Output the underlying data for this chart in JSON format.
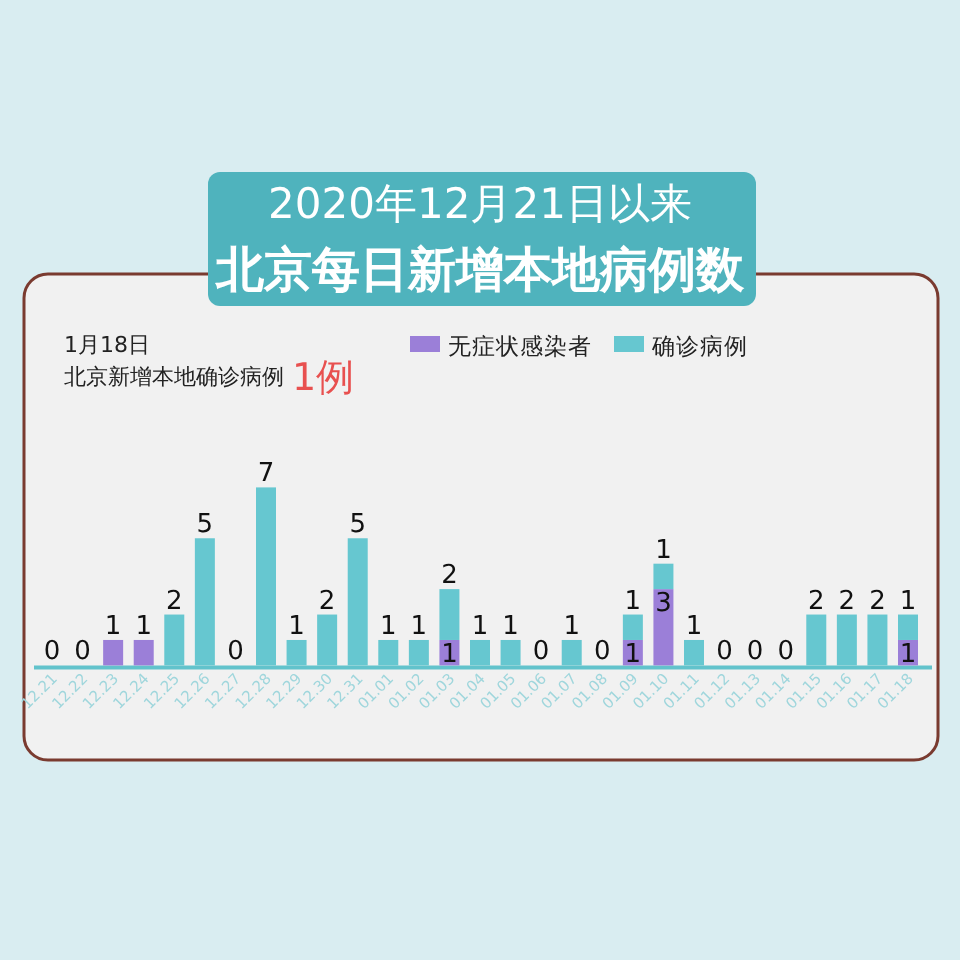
{
  "chart_data": {
    "type": "bar",
    "stacked": true,
    "title": "2020年12月21日以来",
    "subtitle": "北京每日新增本地病例数",
    "annotations": [
      "1月18日",
      "北京新增本地确诊病例",
      "1例"
    ],
    "legend": "top",
    "categories": [
      "12.21",
      "12.22",
      "12.23",
      "12.24",
      "12.25",
      "12.26",
      "12.27",
      "12.28",
      "12.29",
      "12.30",
      "12.31",
      "01.01",
      "01.02",
      "01.03",
      "01.04",
      "01.05",
      "01.06",
      "01.07",
      "01.08",
      "01.09",
      "01.10",
      "01.11",
      "01.12",
      "01.13",
      "01.14",
      "01.15",
      "01.16",
      "01.17",
      "01.18"
    ],
    "series": [
      {
        "name": "无症状感染者",
        "color": "#9b7fd8",
        "values": [
          0,
          0,
          1,
          1,
          0,
          0,
          0,
          0,
          0,
          0,
          0,
          0,
          0,
          1,
          0,
          0,
          0,
          0,
          0,
          1,
          3,
          0,
          0,
          0,
          0,
          0,
          0,
          0,
          1
        ],
        "value_labels": [
          null,
          null,
          "1",
          "1",
          null,
          null,
          null,
          null,
          null,
          null,
          null,
          null,
          null,
          "1",
          null,
          null,
          null,
          null,
          null,
          "1",
          "3",
          null,
          null,
          null,
          null,
          null,
          null,
          null,
          "1"
        ]
      },
      {
        "name": "确诊病例",
        "color": "#66c7d0",
        "values": [
          0,
          0,
          0,
          0,
          2,
          5,
          0,
          7,
          1,
          2,
          5,
          1,
          1,
          2,
          1,
          1,
          0,
          1,
          0,
          1,
          1,
          1,
          0,
          0,
          0,
          2,
          2,
          2,
          1
        ],
        "value_labels": [
          "0",
          "0",
          null,
          null,
          "2",
          "5",
          "0",
          "7",
          "1",
          "2",
          "5",
          "1",
          "1",
          "2",
          "1",
          "1",
          "0",
          "1",
          "0",
          "1",
          "1",
          "1",
          "0",
          "0",
          "0",
          "2",
          "2",
          "2",
          "1"
        ]
      }
    ]
  }
}
